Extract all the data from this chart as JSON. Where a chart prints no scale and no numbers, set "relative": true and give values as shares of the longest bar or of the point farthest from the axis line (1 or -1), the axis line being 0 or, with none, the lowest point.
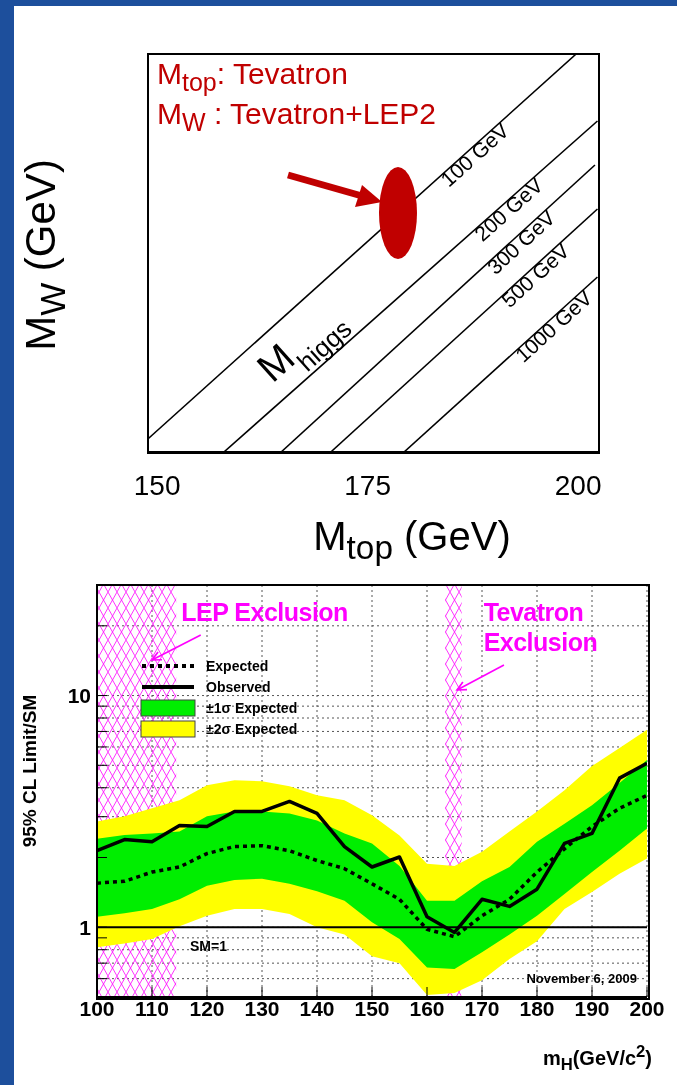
{
  "chart_data": [
    {
      "type": "line",
      "relative": true,
      "xlabel": "M$_{top}$ (GeV)",
      "ylabel": "M$_{W}$ (GeV)",
      "xlim": [
        148.8,
        202.6
      ],
      "xticks": [
        150,
        175,
        200
      ],
      "grid": false,
      "annotations": [
        "M$_{top}$: Tevatron",
        "M$_{W}$ : Tevatron+LEP2",
        "M$_{higgs}$"
      ],
      "series": [
        {
          "name": "100 GeV",
          "color": "#000000",
          "x": [
            148.9,
            199.9
          ],
          "values": [
            0.035,
            1
          ]
        },
        {
          "name": "200 GeV",
          "color": "#000000",
          "x": [
            157.8,
            202.3
          ],
          "values": [
            0,
            0.83
          ]
        },
        {
          "name": "300 GeV",
          "color": "#000000",
          "x": [
            164.6,
            202.0
          ],
          "values": [
            0,
            0.72
          ]
        },
        {
          "name": "500 GeV",
          "color": "#000000",
          "x": [
            170.5,
            202.3
          ],
          "values": [
            0,
            0.61
          ]
        },
        {
          "name": "1000 GeV",
          "color": "#000000",
          "x": [
            179.2,
            202.3
          ],
          "values": [
            0,
            0.44
          ]
        }
      ]
    },
    {
      "type": "line",
      "log": true,
      "xlabel": "m$_{H}$(GeV/c$^{2}$)",
      "ylabel": "95% CL Limit/SM",
      "xlim": [
        100,
        200
      ],
      "xticks": [
        100,
        110,
        120,
        130,
        140,
        150,
        160,
        170,
        180,
        190,
        200
      ],
      "ylim": [
        0.5,
        30
      ],
      "yticks": [
        {
          "value": 0.6,
          "label": null
        },
        {
          "value": 0.7,
          "label": null
        },
        {
          "value": 0.8,
          "label": null
        },
        {
          "value": 0.9,
          "label": null
        },
        1,
        {
          "value": 2,
          "label": null
        },
        {
          "value": 3,
          "label": null
        },
        {
          "value": 4,
          "label": null
        },
        {
          "value": 5,
          "label": null
        },
        {
          "value": 6,
          "label": null
        },
        {
          "value": 7,
          "label": null
        },
        {
          "value": 8,
          "label": null
        },
        {
          "value": 9,
          "label": null
        },
        10,
        {
          "value": 20,
          "label": null
        }
      ],
      "grid": true,
      "legend": "top left",
      "x": [
        100,
        105,
        110,
        115,
        120,
        125,
        130,
        135,
        140,
        145,
        150,
        155,
        160,
        165,
        170,
        175,
        180,
        185,
        190,
        195,
        200
      ],
      "series": [
        {
          "name": "Expected",
          "color": "#000000",
          "line_style": "dotted",
          "values": [
            1.55,
            1.58,
            1.73,
            1.82,
            2.08,
            2.23,
            2.25,
            2.14,
            1.94,
            1.79,
            1.54,
            1.32,
            0.98,
            0.91,
            1.12,
            1.32,
            1.73,
            2.18,
            2.72,
            3.26,
            3.71
          ]
        },
        {
          "name": "Observed",
          "color": "#000000",
          "line_style": "solid",
          "values": [
            2.14,
            2.39,
            2.34,
            2.75,
            2.72,
            3.16,
            3.16,
            3.49,
            3.1,
            2.23,
            1.82,
            2.01,
            1.11,
            0.95,
            1.32,
            1.23,
            1.46,
            2.3,
            2.54,
            4.4,
            5.1
          ]
        },
        {
          "name": "±1σ Expected",
          "type": "area",
          "color": "#00ee00",
          "values": [
            null,
            null,
            null,
            null,
            null,
            null,
            null,
            null,
            null,
            null,
            null,
            null,
            null,
            null,
            null,
            null,
            null,
            null,
            null,
            null,
            null
          ],
          "lower": [
            1.11,
            1.15,
            1.2,
            1.32,
            1.51,
            1.6,
            1.62,
            1.54,
            1.43,
            1.3,
            1.05,
            0.89,
            0.67,
            0.66,
            0.78,
            0.93,
            1.12,
            1.39,
            1.73,
            2.14,
            2.67
          ],
          "upper": [
            2.41,
            2.5,
            2.54,
            2.59,
            3.01,
            3.16,
            3.16,
            3.1,
            2.89,
            2.54,
            2.3,
            1.84,
            1.3,
            1.3,
            1.58,
            1.82,
            2.34,
            2.8,
            3.36,
            4.19,
            5.27
          ]
        },
        {
          "name": "±2σ Expected",
          "type": "area",
          "color": "#ffff00",
          "values": [
            null,
            null,
            null,
            null,
            null,
            null,
            null,
            null,
            null,
            null,
            null,
            null,
            null,
            null,
            null,
            null,
            null,
            null,
            null,
            null,
            null
          ],
          "lower": [
            0.82,
            0.85,
            0.89,
            1.01,
            1.12,
            1.2,
            1.2,
            1.14,
            1.0,
            0.93,
            0.75,
            0.7,
            0.51,
            0.52,
            0.59,
            0.73,
            0.87,
            1.2,
            1.42,
            1.7,
            1.98
          ],
          "upper": [
            2.86,
            3.01,
            3.26,
            3.53,
            4.1,
            4.31,
            4.27,
            4.06,
            3.71,
            3.53,
            3.04,
            2.49,
            1.88,
            1.84,
            2.12,
            2.59,
            3.16,
            3.9,
            4.96,
            5.94,
            7.11
          ]
        }
      ],
      "bands": [
        {
          "axis": "x",
          "from": 100,
          "to": 114.4,
          "label": "LEP Exclusion",
          "color": "#ff00ff"
        },
        {
          "axis": "x",
          "from": 163.3,
          "to": 166.3,
          "label": "Tevatron Exclusion",
          "color": "#ff00ff"
        }
      ],
      "ref_lines": [
        {
          "axis": "y",
          "value": 1,
          "label": "SM=1",
          "color": "#000000"
        }
      ],
      "annotations": [
        "November 6, 2009"
      ]
    }
  ]
}
